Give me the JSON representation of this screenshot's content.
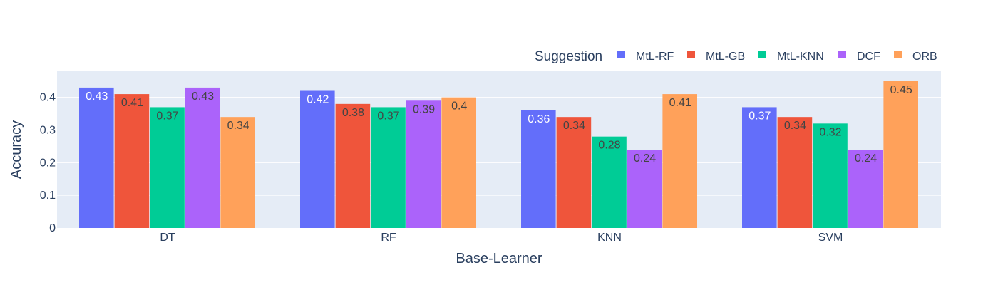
{
  "chart_data": {
    "type": "bar",
    "title": "",
    "xlabel": "Base-Learner",
    "ylabel": "Accuracy",
    "ylim": [
      0,
      0.48
    ],
    "yticks": [
      0,
      0.1,
      0.2,
      0.3,
      0.4
    ],
    "grid": true,
    "legend_placement": "top-right",
    "legend_title": "Suggestion",
    "categories": [
      "DT",
      "RF",
      "KNN",
      "SVM"
    ],
    "series": [
      {
        "name": "MtL-RF",
        "color": "#636efa",
        "values": [
          0.43,
          0.42,
          0.36,
          0.37
        ],
        "labels": [
          "0.43",
          "0.42",
          "0.36",
          "0.37"
        ]
      },
      {
        "name": "MtL-GB",
        "color": "#ef553b",
        "values": [
          0.41,
          0.38,
          0.34,
          0.34
        ],
        "labels": [
          "0.41",
          "0.38",
          "0.34",
          "0.34"
        ]
      },
      {
        "name": "MtL-KNN",
        "color": "#00cc96",
        "values": [
          0.37,
          0.37,
          0.28,
          0.32
        ],
        "labels": [
          "0.37",
          "0.37",
          "0.28",
          "0.32"
        ]
      },
      {
        "name": "DCF",
        "color": "#ab63fa",
        "values": [
          0.43,
          0.39,
          0.24,
          0.24
        ],
        "labels": [
          "0.43",
          "0.39",
          "0.24",
          "0.24"
        ]
      },
      {
        "name": "ORB",
        "color": "#ffa15a",
        "values": [
          0.34,
          0.4,
          0.41,
          0.45
        ],
        "labels": [
          "0.34",
          "0.4",
          "0.41",
          "0.45"
        ]
      }
    ],
    "colors": {
      "plot_background": "#e5ecf6",
      "gridline": "#ffffff",
      "text": "#2a3f5f",
      "label_light": "#ffffff",
      "label_dark": "#444444"
    }
  }
}
